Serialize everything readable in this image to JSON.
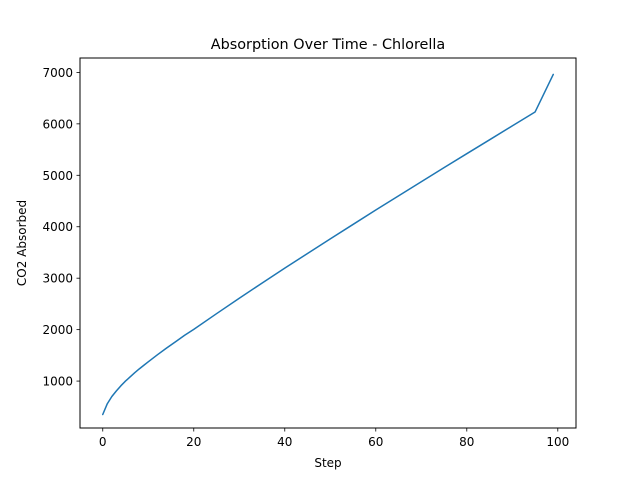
{
  "chart_data": {
    "type": "line",
    "title": "Absorption Over Time - Chlorella",
    "xlabel": "Step",
    "ylabel": "CO2 Absorbed",
    "xlim": [
      -5,
      104
    ],
    "ylim": [
      88,
      7280
    ],
    "xticks": [
      0,
      20,
      40,
      60,
      80,
      100
    ],
    "yticks": [
      1000,
      2000,
      3000,
      4000,
      5000,
      6000,
      7000
    ],
    "grid": false,
    "legend": "none",
    "series": [
      {
        "color": "#1f77b4",
        "x": [
          0,
          1,
          2,
          3,
          4,
          5,
          6,
          7,
          8,
          9,
          10,
          12,
          14,
          16,
          18,
          20,
          25,
          30,
          35,
          40,
          45,
          50,
          55,
          60,
          65,
          70,
          75,
          80,
          85,
          90,
          95,
          99
        ],
        "y": [
          350,
          560,
          700,
          810,
          910,
          1000,
          1080,
          1160,
          1235,
          1305,
          1375,
          1510,
          1640,
          1765,
          1890,
          2005,
          2310,
          2610,
          2905,
          3195,
          3480,
          3765,
          4045,
          4325,
          4600,
          4875,
          5150,
          5420,
          5690,
          5960,
          6230,
          6960
        ]
      }
    ]
  }
}
